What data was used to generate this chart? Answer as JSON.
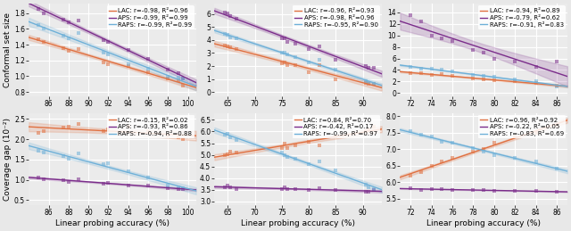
{
  "panels": [
    {
      "row": 0,
      "col": 0,
      "xlabel": "",
      "ylabel": "Conformal set size",
      "xticks": [
        86,
        88,
        90,
        92,
        94,
        96,
        98,
        100
      ],
      "xlim": [
        84.0,
        100.8
      ],
      "ylim": [
        0.75,
        1.92
      ],
      "yticks": [
        0.8,
        1.0,
        1.2,
        1.4,
        1.6,
        1.8
      ],
      "series": [
        {
          "name": "LAC",
          "r": -0.98,
          "R2": 0.96,
          "color": "#E07040",
          "x": [
            85.0,
            85.5,
            87.5,
            88.0,
            89.0,
            91.5,
            92.0,
            94.0,
            96.0,
            98.0,
            99.0,
            99.5
          ],
          "y": [
            1.47,
            1.43,
            1.36,
            1.32,
            1.35,
            1.18,
            1.15,
            1.13,
            1.05,
            0.97,
            0.95,
            0.88
          ]
        },
        {
          "name": "APS",
          "r": -0.99,
          "R2": 0.99,
          "color": "#7B2D8B",
          "x": [
            85.0,
            85.5,
            87.5,
            88.0,
            89.0,
            91.5,
            92.0,
            94.0,
            96.0,
            98.0,
            99.0,
            99.5
          ],
          "y": [
            1.85,
            1.8,
            1.72,
            1.68,
            1.71,
            1.46,
            1.44,
            1.33,
            1.22,
            1.08,
            1.04,
            0.97
          ]
        },
        {
          "name": "RAPS",
          "r": -0.99,
          "R2": 0.99,
          "color": "#6EB0D8",
          "x": [
            85.0,
            85.5,
            87.5,
            88.0,
            89.0,
            91.5,
            92.0,
            94.0,
            96.0,
            98.0,
            99.0,
            99.5
          ],
          "y": [
            1.65,
            1.6,
            1.52,
            1.48,
            1.55,
            1.3,
            1.28,
            1.15,
            1.1,
            0.99,
            0.98,
            0.97
          ]
        }
      ]
    },
    {
      "row": 0,
      "col": 1,
      "xlabel": "",
      "ylabel": "",
      "xticks": [
        65,
        70,
        75,
        80,
        85,
        90
      ],
      "xlim": [
        62.5,
        93.5
      ],
      "ylim": [
        -0.3,
        6.8
      ],
      "yticks": [
        0,
        1,
        2,
        3,
        4,
        5,
        6
      ],
      "series": [
        {
          "name": "LAC",
          "r": -0.96,
          "R2": 0.93,
          "color": "#E07040",
          "x": [
            64.5,
            65.0,
            65.5,
            66.5,
            75.0,
            75.5,
            76.0,
            77.5,
            80.0,
            82.0,
            85.0,
            90.5,
            91.0,
            92.0
          ],
          "y": [
            3.6,
            3.5,
            3.45,
            3.3,
            2.2,
            2.3,
            2.1,
            2.05,
            1.5,
            2.1,
            1.0,
            0.72,
            0.65,
            0.6
          ]
        },
        {
          "name": "APS",
          "r": -0.98,
          "R2": 0.96,
          "color": "#7B2D8B",
          "x": [
            64.5,
            65.0,
            65.5,
            66.5,
            75.0,
            75.5,
            76.0,
            77.5,
            80.0,
            82.0,
            85.0,
            90.5,
            91.0,
            92.0
          ],
          "y": [
            6.15,
            6.05,
            5.85,
            5.65,
            4.1,
            4.15,
            3.85,
            3.7,
            3.3,
            3.5,
            2.5,
            2.0,
            1.9,
            1.85
          ]
        },
        {
          "name": "RAPS",
          "r": -0.95,
          "R2": 0.9,
          "color": "#6EB0D8",
          "x": [
            64.5,
            65.0,
            65.5,
            66.5,
            75.0,
            75.5,
            76.0,
            77.5,
            80.0,
            82.0,
            85.0,
            90.5,
            91.0,
            92.0
          ],
          "y": [
            4.5,
            4.4,
            4.2,
            4.1,
            3.0,
            3.05,
            2.9,
            2.7,
            2.3,
            2.5,
            1.7,
            0.85,
            0.72,
            0.62
          ]
        }
      ]
    },
    {
      "row": 0,
      "col": 2,
      "xlabel": "",
      "ylabel": "",
      "xticks": [
        72,
        74,
        76,
        78,
        80,
        82,
        84,
        86
      ],
      "xlim": [
        71.0,
        87.0
      ],
      "ylim": [
        -0.5,
        15.5
      ],
      "yticks": [
        0,
        2,
        4,
        6,
        8,
        10,
        12,
        14
      ],
      "series": [
        {
          "name": "LAC",
          "r": -0.94,
          "R2": 0.89,
          "color": "#E07040",
          "x": [
            72,
            73,
            74,
            75,
            76,
            78,
            79,
            80,
            82,
            84,
            86
          ],
          "y": [
            3.5,
            3.4,
            3.2,
            3.25,
            3.0,
            2.5,
            2.3,
            2.2,
            2.0,
            1.8,
            1.25
          ]
        },
        {
          "name": "APS",
          "r": -0.79,
          "R2": 0.62,
          "color": "#7B2D8B",
          "x": [
            72,
            73,
            74,
            75,
            76,
            78,
            79,
            80,
            82,
            84,
            86
          ],
          "y": [
            13.5,
            12.5,
            10.0,
            9.5,
            9.0,
            7.5,
            7.0,
            6.0,
            5.5,
            4.5,
            5.5
          ]
        },
        {
          "name": "RAPS",
          "r": -0.91,
          "R2": 0.83,
          "color": "#6EB0D8",
          "x": [
            72,
            73,
            74,
            75,
            76,
            78,
            79,
            80,
            82,
            84,
            86
          ],
          "y": [
            4.5,
            4.3,
            4.2,
            4.0,
            3.8,
            3.2,
            3.0,
            2.8,
            2.3,
            2.0,
            1.2
          ]
        }
      ]
    },
    {
      "row": 1,
      "col": 0,
      "xlabel": "Linear probing accuracy (%)",
      "ylabel": "Coverage gap (10⁻²)",
      "xticks": [
        86,
        88,
        90,
        92,
        94,
        96,
        98,
        100
      ],
      "xlim": [
        84.0,
        100.8
      ],
      "ylim": [
        0.38,
        2.65
      ],
      "yticks": [
        0.5,
        1.0,
        1.5,
        2.0,
        2.5
      ],
      "series": [
        {
          "name": "LAC",
          "r": -0.15,
          "R2": 0.02,
          "color": "#E07040",
          "x": [
            85.0,
            85.5,
            87.5,
            88.0,
            89.0,
            91.5,
            92.0,
            94.0,
            96.0,
            98.0,
            99.0,
            99.5
          ],
          "y": [
            2.15,
            2.2,
            2.28,
            2.3,
            2.38,
            2.2,
            2.25,
            2.3,
            2.2,
            2.1,
            2.05,
            2.0
          ]
        },
        {
          "name": "APS",
          "r": -0.93,
          "R2": 0.86,
          "color": "#7B2D8B",
          "x": [
            85.0,
            85.5,
            87.5,
            88.0,
            89.0,
            91.5,
            92.0,
            94.0,
            96.0,
            98.0,
            99.0,
            99.5
          ],
          "y": [
            1.05,
            1.02,
            1.0,
            0.95,
            1.02,
            0.9,
            0.93,
            0.87,
            0.85,
            0.8,
            0.78,
            0.78
          ]
        },
        {
          "name": "RAPS",
          "r": -0.94,
          "R2": 0.88,
          "color": "#6EB0D8",
          "x": [
            85.0,
            85.5,
            87.5,
            88.0,
            89.0,
            91.5,
            92.0,
            94.0,
            96.0,
            98.0,
            99.0,
            99.5
          ],
          "y": [
            1.72,
            1.68,
            1.58,
            1.53,
            1.65,
            1.38,
            1.4,
            1.22,
            1.05,
            0.85,
            0.82,
            0.8
          ]
        }
      ]
    },
    {
      "row": 1,
      "col": 1,
      "xlabel": "Linear probing accuracy (%)",
      "ylabel": "",
      "xticks": [
        65,
        70,
        75,
        80,
        85,
        90
      ],
      "xlim": [
        62.5,
        93.5
      ],
      "ylim": [
        2.85,
        6.8
      ],
      "yticks": [
        3.0,
        3.5,
        4.0,
        4.5,
        5.0,
        5.5,
        6.0,
        6.5
      ],
      "series": [
        {
          "name": "LAC",
          "r": 0.84,
          "R2": 0.7,
          "color": "#E07040",
          "x": [
            64.5,
            65.0,
            65.5,
            66.5,
            75.0,
            75.5,
            76.0,
            77.5,
            80.0,
            82.0,
            85.0,
            90.5,
            91.0,
            92.0
          ],
          "y": [
            5.0,
            5.02,
            5.15,
            5.1,
            5.3,
            5.5,
            5.3,
            5.4,
            5.55,
            5.4,
            5.78,
            6.0,
            6.1,
            6.2
          ]
        },
        {
          "name": "APS",
          "r": -0.42,
          "R2": 0.17,
          "color": "#7B2D8B",
          "x": [
            64.5,
            65.0,
            65.5,
            66.5,
            75.0,
            75.5,
            76.0,
            77.5,
            80.0,
            82.0,
            85.0,
            90.5,
            91.0,
            92.0
          ],
          "y": [
            3.62,
            3.68,
            3.62,
            3.52,
            3.52,
            3.6,
            3.55,
            3.52,
            3.5,
            3.58,
            3.5,
            3.42,
            3.4,
            3.5
          ]
        },
        {
          "name": "RAPS",
          "r": -0.99,
          "R2": 0.97,
          "color": "#6EB0D8",
          "x": [
            64.5,
            65.0,
            65.5,
            66.5,
            75.0,
            75.5,
            76.0,
            77.5,
            80.0,
            82.0,
            85.0,
            90.5,
            91.0,
            92.0
          ],
          "y": [
            5.85,
            5.92,
            5.75,
            5.62,
            5.1,
            5.0,
            4.9,
            4.85,
            4.62,
            4.72,
            4.32,
            3.72,
            3.6,
            3.52
          ]
        }
      ]
    },
    {
      "row": 1,
      "col": 2,
      "xlabel": "Linear probing accuracy (%)",
      "ylabel": "",
      "xticks": [
        72,
        74,
        76,
        78,
        80,
        82,
        84,
        86
      ],
      "xlim": [
        71.0,
        87.0
      ],
      "ylim": [
        5.3,
        8.1
      ],
      "yticks": [
        5.5,
        6.0,
        6.5,
        7.0,
        7.5,
        8.0
      ],
      "series": [
        {
          "name": "LAC",
          "r": 0.96,
          "R2": 0.92,
          "color": "#E07040",
          "x": [
            72,
            73,
            74,
            75,
            76,
            78,
            79,
            80,
            82,
            84,
            86
          ],
          "y": [
            6.2,
            6.3,
            6.48,
            6.62,
            6.72,
            6.92,
            7.0,
            7.18,
            7.38,
            7.5,
            7.72
          ]
        },
        {
          "name": "APS",
          "r": -0.22,
          "R2": 0.05,
          "color": "#7B2D8B",
          "x": [
            72,
            73,
            74,
            75,
            76,
            78,
            79,
            80,
            82,
            84,
            86
          ],
          "y": [
            5.8,
            5.77,
            5.79,
            5.78,
            5.77,
            5.76,
            5.75,
            5.74,
            5.73,
            5.72,
            5.71
          ]
        },
        {
          "name": "RAPS",
          "r": -0.83,
          "R2": 0.69,
          "color": "#6EB0D8",
          "x": [
            72,
            73,
            74,
            75,
            76,
            78,
            79,
            80,
            82,
            84,
            86
          ],
          "y": [
            7.55,
            7.45,
            7.38,
            7.22,
            7.18,
            7.02,
            6.92,
            6.82,
            6.72,
            6.62,
            6.42
          ]
        }
      ]
    }
  ],
  "fig_bg": "#e8e8e8",
  "ax_bg": "#ebebeb",
  "grid_color": "#ffffff",
  "scatter_alpha": 0.55,
  "line_alpha": 1.0,
  "band_alpha": 0.18,
  "marker": "s",
  "marker_size": 8,
  "legend_fontsize": 5.0,
  "tick_fontsize": 5.5,
  "label_fontsize": 6.5
}
